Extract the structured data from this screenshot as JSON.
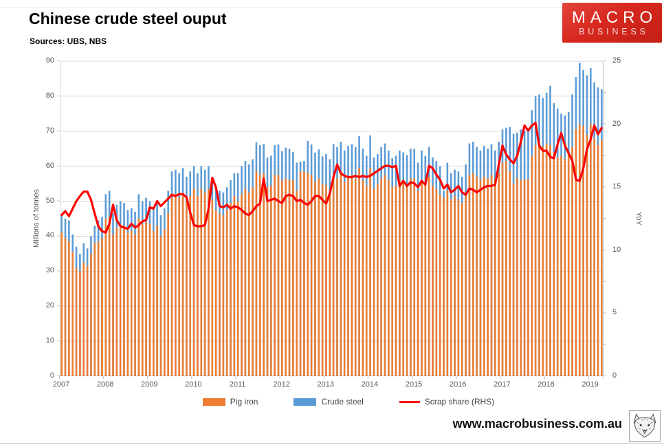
{
  "header": {
    "title": "Chinese crude steel ouput",
    "subtitle": "Sources: UBS, NBS"
  },
  "logo": {
    "line1": "MACRO",
    "line2": "BUSINESS",
    "bg_color": "#d6281e"
  },
  "footer": {
    "website": "www.macrobusiness.com.au",
    "logo_icon": "wolf-head-etching"
  },
  "chart_data": {
    "type": "bar+line",
    "x_unit": "month",
    "x_start": "2007-01",
    "x_end": "2019-04",
    "grid": true,
    "year_labels": [
      "2007",
      "2008",
      "2009",
      "2010",
      "2011",
      "2012",
      "2013",
      "2014",
      "2015",
      "2016",
      "2017",
      "2018",
      "2019"
    ],
    "left_axis": {
      "label": "Millions of tonnes",
      "min": 0,
      "max": 90,
      "ticks": [
        0,
        10,
        20,
        30,
        40,
        50,
        60,
        70,
        80,
        90
      ]
    },
    "right_axis": {
      "label": "YoY",
      "min": 0,
      "max": 25,
      "ticks": [
        0,
        5,
        10,
        15,
        20,
        25
      ]
    },
    "legend_position": "bottom",
    "series": [
      {
        "name": "Pig iron",
        "type": "bar",
        "axis": "left",
        "color": "#ED7D31",
        "values": [
          41,
          39.5,
          38.5,
          35.5,
          31,
          30,
          32.5,
          31.5,
          35,
          38,
          38.5,
          39.5,
          45,
          45.5,
          40.5,
          42.5,
          43.5,
          43,
          41,
          41.5,
          40.5,
          45,
          43.5,
          44,
          43.5,
          41.5,
          43,
          40,
          42,
          46.5,
          51,
          52,
          51,
          52.5,
          50,
          51.5,
          53.5,
          51.5,
          53.5,
          52.5,
          53.5,
          50.5,
          47.5,
          46.5,
          46,
          47.5,
          49.5,
          51.5,
          50,
          52,
          53.5,
          52.5,
          54,
          58.5,
          57.5,
          58,
          54,
          54.5,
          57.5,
          57.5,
          56,
          56.5,
          56,
          56,
          53,
          58.5,
          58.5,
          58,
          57.5,
          55.5,
          56.5,
          55,
          54.5,
          53,
          57,
          56.5,
          58,
          55.5,
          57,
          57.5,
          56.5,
          59.5,
          56,
          54.5,
          59.5,
          53.5,
          55,
          56.5,
          57.5,
          56,
          54,
          54.5,
          56,
          55.5,
          54.5,
          56.5,
          56.5,
          53,
          56,
          54.5,
          57,
          54.5,
          53.5,
          52,
          51,
          53,
          50.5,
          51.5,
          50.5,
          49.5,
          52.5,
          57.5,
          58,
          57,
          56,
          57,
          56.5,
          57.5,
          56,
          58,
          61,
          61.5,
          58.6,
          55,
          56.6,
          56,
          56.3,
          56.3,
          63,
          66,
          66.5,
          65.5,
          66.5,
          66,
          64,
          62.5,
          63,
          62,
          63.5,
          65.5,
          70.5,
          72,
          71.5,
          69,
          72,
          68,
          66,
          67.5
        ]
      },
      {
        "name": "Crude steel",
        "type": "bar",
        "axis": "left",
        "color": "#5B9BD5",
        "values": [
          46,
          45,
          44.5,
          40.5,
          37,
          35,
          38,
          36.5,
          40,
          43,
          44.5,
          45.5,
          52,
          53,
          46.5,
          49,
          50,
          49.5,
          47.5,
          48,
          47,
          52,
          50,
          51,
          50,
          48,
          49.5,
          46,
          48,
          53,
          58.5,
          59,
          58,
          59.5,
          57,
          58.5,
          60,
          58,
          60,
          59,
          60,
          57,
          54,
          53,
          52.5,
          54,
          56,
          58,
          58,
          60,
          61.5,
          60.5,
          62,
          66.8,
          66,
          66.3,
          62.5,
          63,
          66,
          66.2,
          64.3,
          65.3,
          64.9,
          64,
          61,
          61.3,
          61.5,
          67.2,
          66.2,
          63.9,
          64.8,
          62.8,
          63.5,
          62,
          66.3,
          65.5,
          67,
          64.5,
          65.8,
          66.3,
          65.5,
          68.6,
          65,
          63,
          68.8,
          62.5,
          63.5,
          65.5,
          66.5,
          64.5,
          62.3,
          63,
          64.5,
          64,
          63.2,
          65,
          65,
          61,
          64.5,
          63,
          65.5,
          62.5,
          61.5,
          60,
          53,
          61,
          58,
          59,
          58.5,
          57,
          60.5,
          66.5,
          67,
          65.5,
          64.5,
          65.8,
          65,
          66.3,
          64.5,
          67,
          70.5,
          71,
          71.2,
          69.3,
          69.6,
          70.5,
          70.2,
          70.2,
          76,
          80,
          80.5,
          79.5,
          81,
          83,
          78,
          76.5,
          75,
          74.5,
          75.5,
          80.5,
          85.5,
          89.5,
          87.5,
          86,
          88,
          84,
          82.5,
          82
        ]
      },
      {
        "name": "Scrap share (RHS)",
        "type": "line",
        "axis": "right",
        "color": "#FF0000",
        "values": [
          12.8,
          13.1,
          12.7,
          13.3,
          13.9,
          14.3,
          14.65,
          14.65,
          14,
          12.9,
          11.9,
          11.5,
          11.4,
          12.1,
          13.6,
          12.4,
          11.9,
          11.8,
          11.7,
          12.1,
          11.8,
          12,
          12.3,
          12.4,
          13.4,
          13.3,
          13.9,
          13.5,
          13.8,
          14.1,
          14.4,
          14.3,
          14.45,
          14.45,
          14.2,
          13,
          12,
          11.9,
          11.9,
          12,
          13.3,
          15.75,
          15,
          13.5,
          13.4,
          13.6,
          13.3,
          13.5,
          13.4,
          13.2,
          12.9,
          12.8,
          13.1,
          13.5,
          13.7,
          15.7,
          13.9,
          14,
          14.1,
          13.9,
          13.75,
          14.3,
          14.4,
          14.3,
          13.9,
          14,
          13.75,
          13.6,
          13.9,
          14.3,
          14.3,
          14,
          13.7,
          14.5,
          15.8,
          16.8,
          16.1,
          15.9,
          15.8,
          15.8,
          15.9,
          15.8,
          15.9,
          15.8,
          15.9,
          16.1,
          16.3,
          16.5,
          16.7,
          16.7,
          16.6,
          16.7,
          15.1,
          15.5,
          15.1,
          15.4,
          15.3,
          15,
          15.5,
          15.2,
          16.7,
          16.5,
          16,
          15.6,
          14.9,
          15.2,
          14.6,
          14.8,
          15.1,
          14.6,
          14.4,
          14.9,
          14.8,
          14.6,
          14.8,
          15,
          15.1,
          15.1,
          15.2,
          16.8,
          18.3,
          17.6,
          17.2,
          16.9,
          17.5,
          18.6,
          19.9,
          19.5,
          19.9,
          20.1,
          18.3,
          17.9,
          17.9,
          17.4,
          17.3,
          18.4,
          19.3,
          18.3,
          17.7,
          17.1,
          15.6,
          15.5,
          16.5,
          18,
          18.8,
          19.9,
          19.2,
          19.7
        ]
      }
    ]
  }
}
